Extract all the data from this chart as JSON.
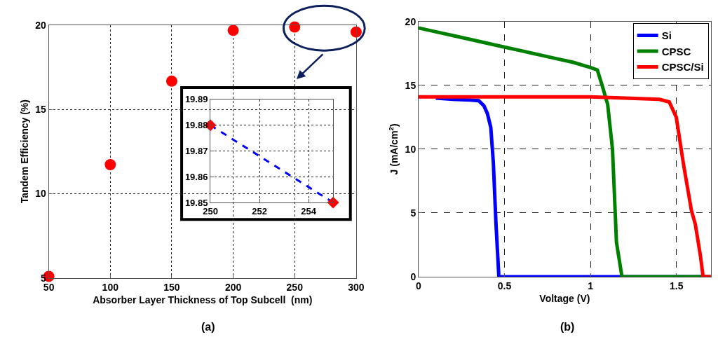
{
  "chart_data": [
    {
      "type": "scatter",
      "xlabel": "Absorber Layer Thickness of Top Subcell  (nm)",
      "ylabel": "Tandem Efficiency (%)",
      "annotations": [
        "(a)"
      ],
      "xlim": [
        50,
        300
      ],
      "ylim": [
        5,
        20
      ],
      "xticks": [
        50,
        100,
        150,
        200,
        250,
        300
      ],
      "yticks": [
        5,
        10,
        15,
        20
      ],
      "grid": true,
      "marker": "circle",
      "legend": false,
      "series": [
        {
          "color": "#ff0000",
          "x": [
            50,
            100,
            150,
            200,
            250,
            300
          ],
          "values": [
            5.1,
            11.72,
            16.67,
            19.68,
            19.88,
            19.58
          ]
        }
      ]
    },
    {
      "type": "line",
      "xlim": [
        250,
        255
      ],
      "ylim": [
        19.85,
        19.89
      ],
      "xticks": [
        250,
        252,
        254
      ],
      "yticks": [
        19.85,
        19.86,
        19.87,
        19.88,
        19.89
      ],
      "grid": true,
      "legend": false,
      "series": [
        {
          "type": "line",
          "color": "#0000ff",
          "line_style": "dashed",
          "marker": "none",
          "x": [
            250,
            255
          ],
          "values": [
            19.88,
            19.85
          ]
        },
        {
          "type": "scatter",
          "color": "#ff0000",
          "marker": "diamond",
          "x": [
            250,
            255
          ],
          "values": [
            19.88,
            19.85
          ]
        }
      ]
    },
    {
      "type": "line",
      "xlabel": "Voltage (V)",
      "ylabel": "J (mA/cm$^{2}$)",
      "annotations": [
        "(b)"
      ],
      "xlim": [
        0,
        1.7
      ],
      "ylim": [
        0,
        20
      ],
      "xticks": [
        0,
        0.5,
        1,
        1.5
      ],
      "yticks": [
        0,
        5,
        10,
        15,
        20
      ],
      "grid": true,
      "legend": "top right",
      "marker": "none",
      "line_style": "solid",
      "series": [
        {
          "name": "Si",
          "color": "#0000ff",
          "x": [
            0.1,
            0.2,
            0.3,
            0.35,
            0.38,
            0.4,
            0.42,
            0.435,
            0.45,
            0.467,
            1.7
          ],
          "values": [
            14.0,
            13.9,
            13.85,
            13.8,
            13.4,
            12.8,
            11.7,
            8.9,
            4.2,
            0,
            0
          ]
        },
        {
          "name": "CPSC",
          "color": "#008000",
          "x": [
            0,
            0.1,
            0.2,
            0.3,
            0.4,
            0.5,
            0.6,
            0.7,
            0.8,
            0.9,
            1.0,
            1.04,
            1.07,
            1.1,
            1.128,
            1.151,
            1.183,
            1.7
          ],
          "values": [
            19.5,
            19.2,
            18.9,
            18.6,
            18.3,
            18.0,
            17.7,
            17.4,
            17.1,
            16.8,
            16.4,
            16.2,
            14.9,
            13.5,
            10,
            2.7,
            0,
            0
          ]
        },
        {
          "name": "CPSC/Si",
          "color": "#ff0000",
          "x": [
            0,
            1.0,
            1.2,
            1.4,
            1.458,
            1.499,
            1.54,
            1.587,
            1.61,
            1.64,
            1.655,
            1.7
          ],
          "values": [
            14.1,
            14.1,
            14.0,
            13.9,
            13.7,
            12.5,
            8.9,
            5.2,
            4.1,
            1.6,
            0,
            0
          ]
        }
      ]
    }
  ]
}
